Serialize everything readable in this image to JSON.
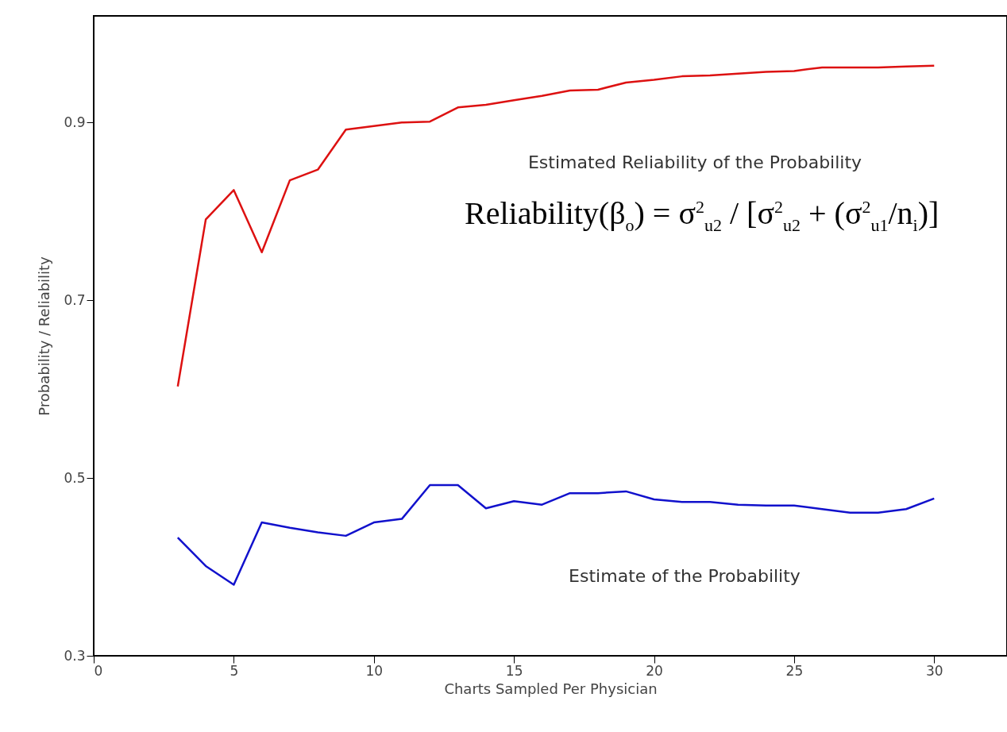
{
  "chart_data": {
    "type": "line",
    "xlabel": "Charts Sampled Per Physician",
    "ylabel": "Probability / Reliability",
    "x": [
      3,
      4,
      5,
      6,
      7,
      8,
      9,
      10,
      11,
      12,
      13,
      14,
      15,
      16,
      17,
      18,
      19,
      20,
      21,
      22,
      23,
      24,
      25,
      26,
      27,
      28,
      29,
      30
    ],
    "series": [
      {
        "color": "#dd1111",
        "values": [
          0.603,
          0.791,
          0.824,
          0.754,
          0.835,
          0.847,
          0.892,
          0.896,
          0.9,
          0.901,
          0.917,
          0.92,
          0.925,
          0.93,
          0.936,
          0.937,
          0.945,
          0.948,
          0.952,
          0.953,
          0.955,
          0.957,
          0.958,
          0.962,
          0.962,
          0.962,
          0.963,
          0.964
        ]
      },
      {
        "color": "#1111cc",
        "values": [
          0.433,
          0.401,
          0.38,
          0.45,
          0.444,
          0.439,
          0.435,
          0.45,
          0.454,
          0.492,
          0.492,
          0.466,
          0.474,
          0.47,
          0.483,
          0.483,
          0.485,
          0.476,
          0.473,
          0.473,
          0.47,
          0.469,
          0.469,
          0.465,
          0.461,
          0.461,
          0.465,
          0.477
        ]
      }
    ],
    "xlim": [
      0,
      32.6
    ],
    "xticks": [
      0,
      5,
      10,
      15,
      20,
      25,
      30
    ],
    "ylim": [
      0.3,
      1.02
    ],
    "yticks": [
      {
        "value": 0.3,
        "label": "0.3"
      },
      {
        "value": 0.5,
        "label": "0.5"
      },
      {
        "value": 0.7,
        "label": "0.7"
      },
      {
        "value": 0.9,
        "label": "0.9"
      }
    ],
    "annotations": [
      "Estimated Reliability of the Probability",
      "Estimate of the Probability",
      "Reliability(β$_{o}$) = σ$^{2}$$_{u2}$ / [σ$^{2}$$_{u2}$ + (σ$^{2}$$_{u1}$/n$_{i}$)]"
    ],
    "grid": false,
    "marker": "none",
    "line_style": "solid"
  }
}
